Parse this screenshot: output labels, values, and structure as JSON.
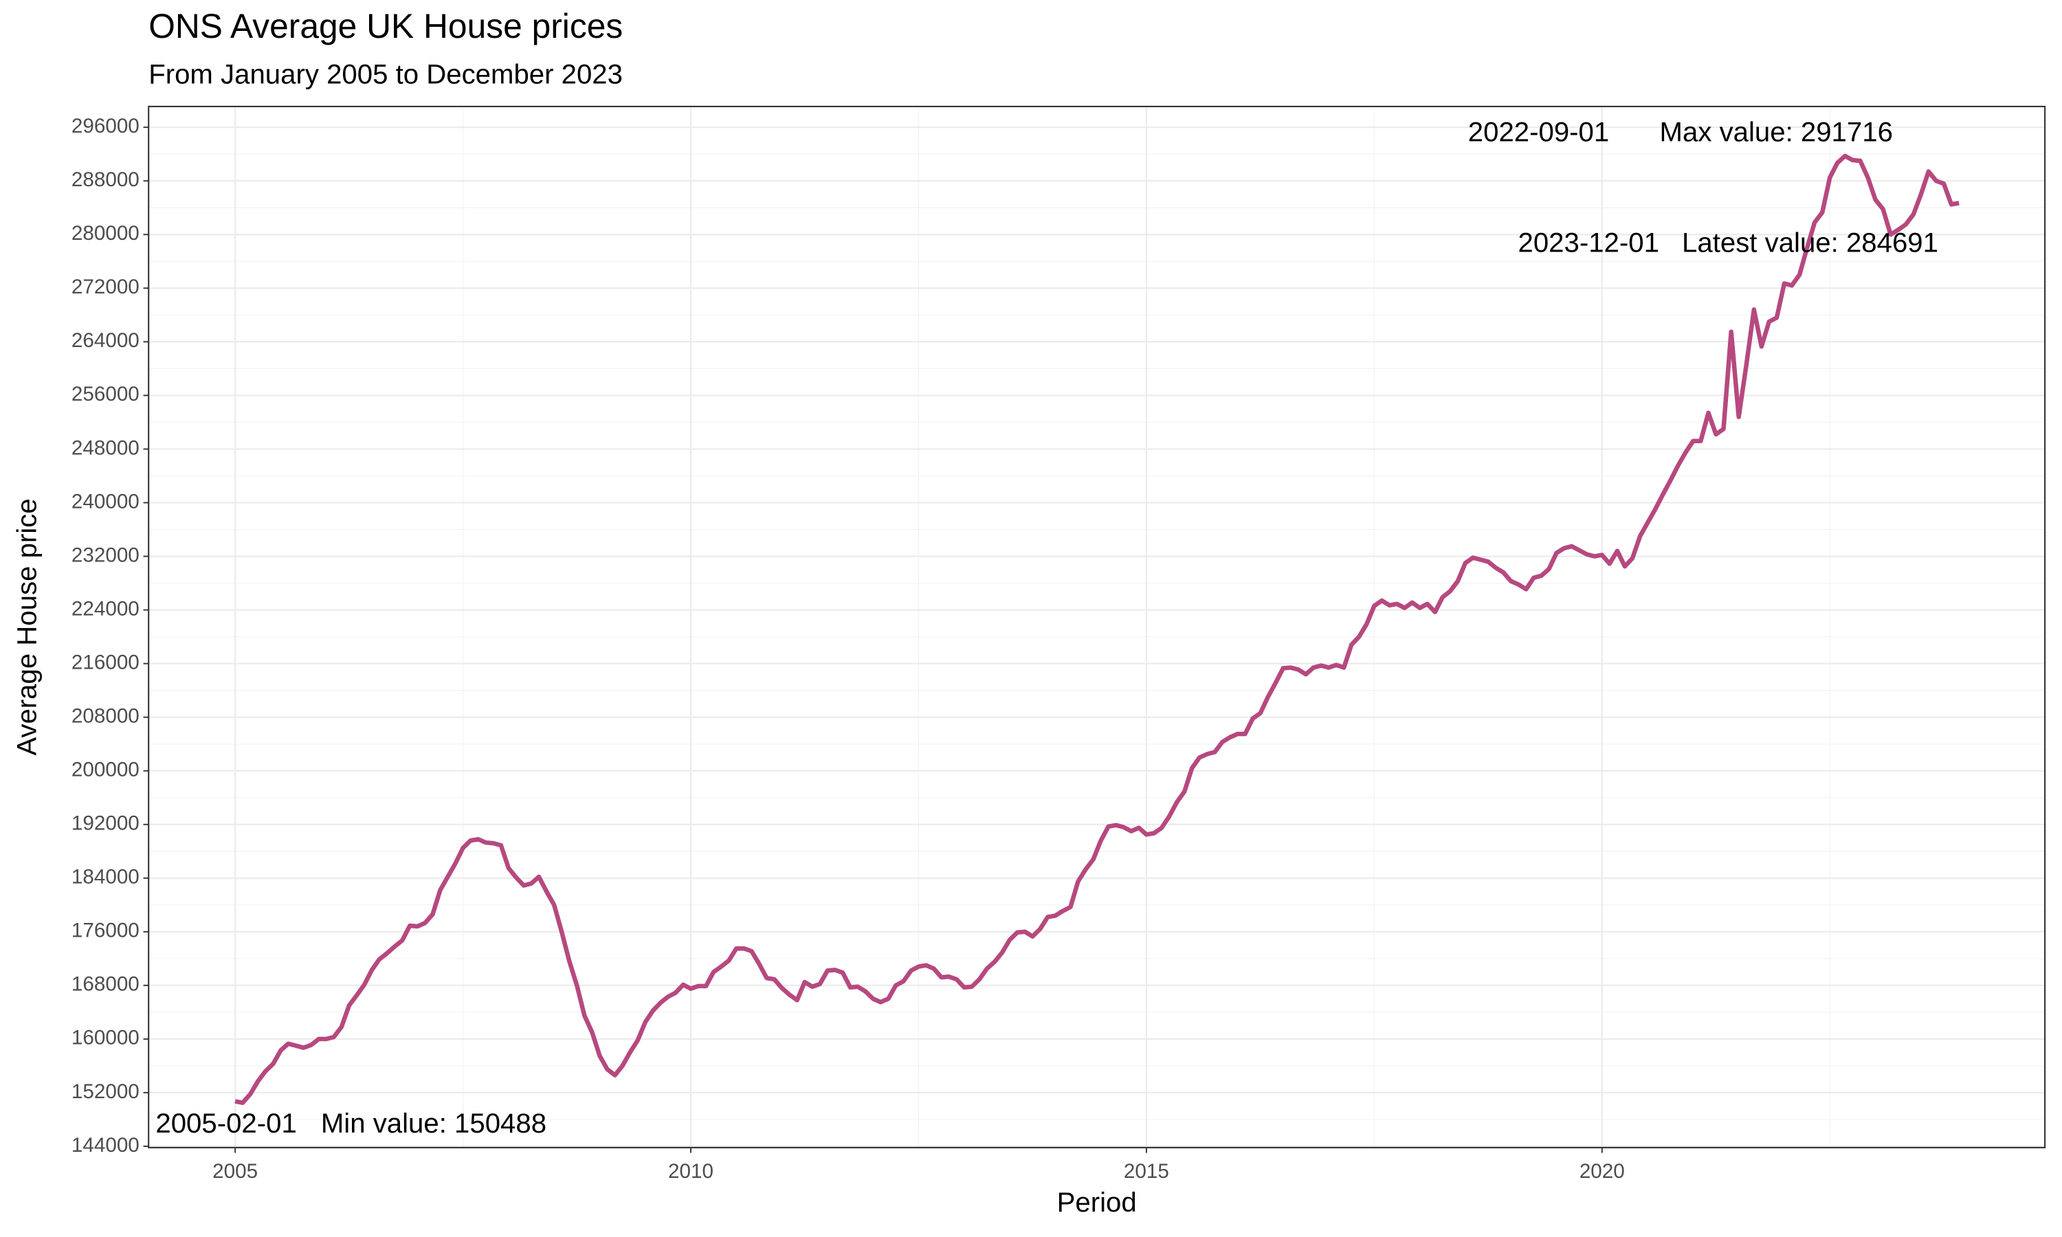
{
  "chart_data": {
    "type": "line",
    "title": "ONS Average UK House prices",
    "subtitle": "From January 2005 to December 2023",
    "x_label": "Period",
    "y_label": "Average House price",
    "xlim": [
      2004.05,
      2024.86
    ],
    "xticks": [
      2005,
      2010,
      2015,
      2020
    ],
    "ylim": [
      143800,
      299100
    ],
    "yticks": [
      144000,
      152000,
      160000,
      168000,
      176000,
      184000,
      192000,
      200000,
      208000,
      216000,
      224000,
      232000,
      240000,
      248000,
      256000,
      264000,
      272000,
      280000,
      288000,
      296000
    ],
    "grid": true,
    "x": [
      2005,
      2005.083,
      2005.167,
      2005.25,
      2005.333,
      2005.417,
      2005.5,
      2005.583,
      2005.667,
      2005.75,
      2005.833,
      2005.917,
      2006,
      2006.083,
      2006.167,
      2006.25,
      2006.333,
      2006.417,
      2006.5,
      2006.583,
      2006.667,
      2006.75,
      2006.833,
      2006.917,
      2007,
      2007.083,
      2007.167,
      2007.25,
      2007.333,
      2007.417,
      2007.5,
      2007.583,
      2007.667,
      2007.75,
      2007.833,
      2007.917,
      2008,
      2008.083,
      2008.167,
      2008.25,
      2008.333,
      2008.417,
      2008.5,
      2008.583,
      2008.667,
      2008.75,
      2008.833,
      2008.917,
      2009,
      2009.083,
      2009.167,
      2009.25,
      2009.333,
      2009.417,
      2009.5,
      2009.583,
      2009.667,
      2009.75,
      2009.833,
      2009.917,
      2010,
      2010.083,
      2010.167,
      2010.25,
      2010.333,
      2010.417,
      2010.5,
      2010.583,
      2010.667,
      2010.75,
      2010.833,
      2010.917,
      2011,
      2011.083,
      2011.167,
      2011.25,
      2011.333,
      2011.417,
      2011.5,
      2011.583,
      2011.667,
      2011.75,
      2011.833,
      2011.917,
      2012,
      2012.083,
      2012.167,
      2012.25,
      2012.333,
      2012.417,
      2012.5,
      2012.583,
      2012.667,
      2012.75,
      2012.833,
      2012.917,
      2013,
      2013.083,
      2013.167,
      2013.25,
      2013.333,
      2013.417,
      2013.5,
      2013.583,
      2013.667,
      2013.75,
      2013.833,
      2013.917,
      2014,
      2014.083,
      2014.167,
      2014.25,
      2014.333,
      2014.417,
      2014.5,
      2014.583,
      2014.667,
      2014.75,
      2014.833,
      2014.917,
      2015,
      2015.083,
      2015.167,
      2015.25,
      2015.333,
      2015.417,
      2015.5,
      2015.583,
      2015.667,
      2015.75,
      2015.833,
      2015.917,
      2016,
      2016.083,
      2016.167,
      2016.25,
      2016.333,
      2016.417,
      2016.5,
      2016.583,
      2016.667,
      2016.75,
      2016.833,
      2016.917,
      2017,
      2017.083,
      2017.167,
      2017.25,
      2017.333,
      2017.417,
      2017.5,
      2017.583,
      2017.667,
      2017.75,
      2017.833,
      2017.917,
      2018,
      2018.083,
      2018.167,
      2018.25,
      2018.333,
      2018.417,
      2018.5,
      2018.583,
      2018.667,
      2018.75,
      2018.833,
      2018.917,
      2019,
      2019.083,
      2019.167,
      2019.25,
      2019.333,
      2019.417,
      2019.5,
      2019.583,
      2019.667,
      2019.75,
      2019.833,
      2019.917,
      2020,
      2020.083,
      2020.167,
      2020.25,
      2020.333,
      2020.417,
      2020.5,
      2020.583,
      2020.667,
      2020.75,
      2020.833,
      2020.917,
      2021,
      2021.083,
      2021.167,
      2021.25,
      2021.333,
      2021.417,
      2021.5,
      2021.583,
      2021.667,
      2021.75,
      2021.833,
      2021.917,
      2022,
      2022.083,
      2022.167,
      2022.25,
      2022.333,
      2022.417,
      2022.5,
      2022.583,
      2022.667,
      2022.75,
      2022.833,
      2022.917,
      2023,
      2023.083,
      2023.167,
      2023.25,
      2023.333,
      2023.417,
      2023.5,
      2023.583,
      2023.667,
      2023.75,
      2023.833,
      2023.917
    ],
    "series": [
      {
        "name": "Average House price",
        "color": "#b6497f",
        "values": [
          150700,
          150488,
          151800,
          153700,
          155200,
          156300,
          158300,
          159300,
          159000,
          158700,
          159100,
          160000,
          160000,
          160300,
          161800,
          165000,
          166500,
          168100,
          170300,
          171900,
          172800,
          173800,
          174700,
          176900,
          176800,
          177300,
          178600,
          182200,
          184200,
          186200,
          188500,
          189600,
          189800,
          189300,
          189200,
          188900,
          185500,
          184100,
          182900,
          183200,
          184200,
          182000,
          180000,
          176000,
          171600,
          168000,
          163500,
          161000,
          157500,
          155500,
          154600,
          156000,
          158000,
          159800,
          162500,
          164200,
          165400,
          166300,
          166900,
          168100,
          167500,
          167900,
          167900,
          170000,
          170800,
          171700,
          173500,
          173500,
          173100,
          171200,
          169100,
          168900,
          167600,
          166600,
          165800,
          168500,
          167800,
          168200,
          170200,
          170300,
          169900,
          167700,
          167800,
          167100,
          166000,
          165500,
          166000,
          168000,
          168600,
          170200,
          170800,
          171000,
          170500,
          169200,
          169300,
          168900,
          167700,
          167800,
          168900,
          170500,
          171500,
          172900,
          174800,
          175900,
          176000,
          175300,
          176400,
          178200,
          178400,
          179100,
          179700,
          183500,
          185300,
          186800,
          189600,
          191700,
          191900,
          191600,
          191000,
          191500,
          190500,
          190700,
          191500,
          193200,
          195300,
          196900,
          200400,
          202000,
          202500,
          202800,
          204300,
          205000,
          205500,
          205500,
          207800,
          208600,
          211000,
          213100,
          215300,
          215400,
          215100,
          214400,
          215400,
          215700,
          215400,
          215800,
          215400,
          218800,
          220000,
          221900,
          224600,
          225400,
          224700,
          224900,
          224300,
          225100,
          224300,
          224900,
          223700,
          225900,
          226800,
          228300,
          231000,
          231800,
          231500,
          231200,
          230300,
          229600,
          228300,
          227800,
          227100,
          228800,
          229100,
          230100,
          232500,
          233200,
          233500,
          232900,
          232300,
          232000,
          232200,
          230900,
          232800,
          230500,
          231700,
          235000,
          237000,
          239000,
          241200,
          243300,
          245500,
          247500,
          249200,
          249200,
          253400,
          250200,
          251000,
          265500,
          252800,
          260500,
          268800,
          263300,
          267000,
          267600,
          272700,
          272400,
          274000,
          278000,
          281800,
          283300,
          288500,
          290700,
          291716,
          291100,
          291000,
          288500,
          285200,
          283800,
          280000,
          280700,
          281500,
          283000,
          286000,
          289400,
          288000,
          287600,
          284500,
          284691
        ]
      }
    ],
    "annotations": [
      {
        "date": "2005-02-01",
        "label": "Min value: 150488"
      },
      {
        "date": "2022-09-01",
        "label": "Max value: 291716"
      },
      {
        "date": "2023-12-01",
        "label": "Latest value: 284691"
      }
    ]
  }
}
